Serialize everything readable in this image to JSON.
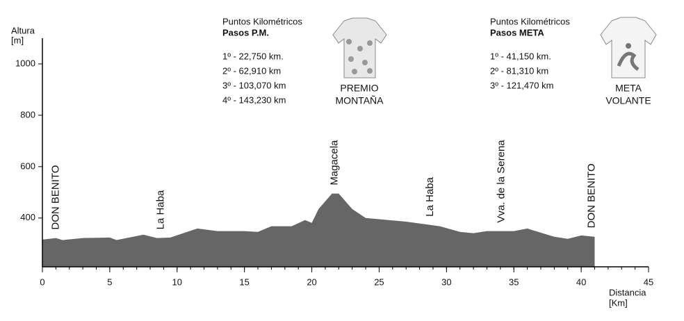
{
  "chart_data": {
    "type": "area",
    "ylabel": [
      "Altura",
      "[m]"
    ],
    "xlabel": [
      "Distancia",
      "[Km]"
    ],
    "x": [
      0,
      1,
      1.5,
      3,
      5,
      5.5,
      7.5,
      8.5,
      9.5,
      11.5,
      13,
      15,
      16,
      17,
      18.5,
      19.5,
      20,
      20.5,
      21.5,
      22,
      23,
      24,
      27,
      29.5,
      31,
      32,
      33,
      35,
      36,
      38,
      39,
      40,
      41
    ],
    "values": [
      316,
      322,
      314,
      322,
      324,
      314,
      335,
      322,
      324,
      359,
      349,
      349,
      346,
      368,
      368,
      392,
      381,
      435,
      495,
      495,
      435,
      400,
      386,
      368,
      346,
      341,
      349,
      349,
      359,
      327,
      319,
      332,
      327
    ],
    "color": "#666666",
    "xlim": [
      0,
      45
    ],
    "xticks": [
      0,
      5,
      10,
      15,
      20,
      25,
      30,
      35,
      40,
      45
    ],
    "ylim": [
      210,
      1100
    ],
    "yticks": [
      400,
      600,
      800,
      1000
    ],
    "places": [
      {
        "label": "DON BENITO",
        "x": 1
      },
      {
        "label": "La Haba",
        "x": 8.8
      },
      {
        "label": "Magacela",
        "x": 21.7
      },
      {
        "label": "La Haba",
        "x": 28.8
      },
      {
        "label": "Vva. de la Serena",
        "x": 34.1
      },
      {
        "label": "DON BENITO",
        "x": 40.8
      }
    ],
    "info_blocks": [
      {
        "heading": "Puntos Kilométricos",
        "subheading": "Pasos P.M.",
        "lines": [
          "1º - 22,750 km.",
          "2º - 62,910 km",
          "3º - 103,070 km",
          "4º - 143,230 km"
        ],
        "badge": [
          "PREMIO",
          "MONTAÑA"
        ]
      },
      {
        "heading": "Puntos Kilométricos",
        "subheading": "Pasos META",
        "lines": [
          "1º - 41,150 km.",
          "2º - 81,310 km",
          "3º - 121,470 km"
        ],
        "badge": [
          "META",
          "VOLANTE"
        ]
      }
    ]
  }
}
